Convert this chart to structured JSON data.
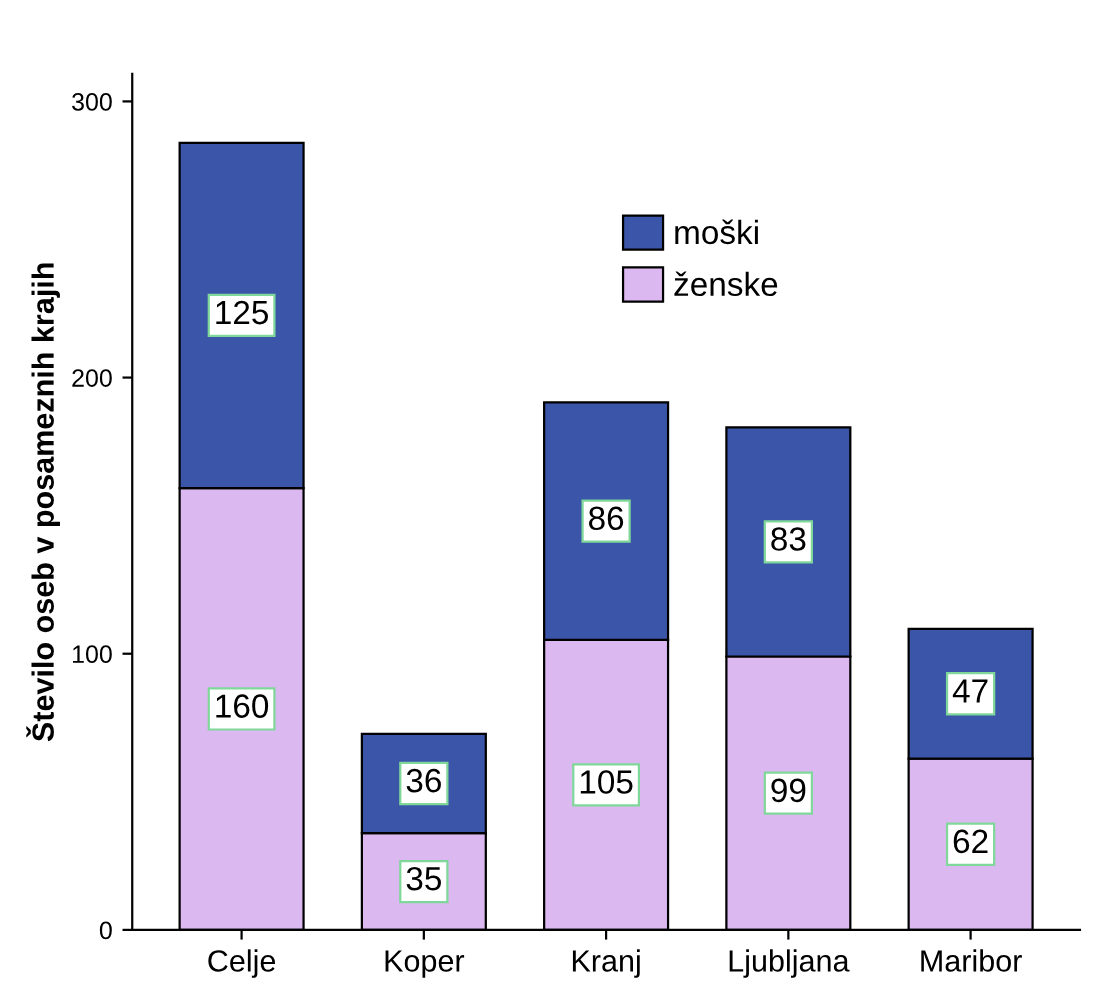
{
  "chart_data": {
    "type": "bar",
    "stacked": true,
    "ylabel": "Število oseb v posameznih krajih",
    "categories": [
      "Celje",
      "Koper",
      "Kranj",
      "Ljubljana",
      "Maribor"
    ],
    "series": [
      {
        "name": "ženske",
        "color": "#dcb8f0",
        "values": [
          160,
          35,
          105,
          99,
          62
        ]
      },
      {
        "name": "moški",
        "color": "#3b56a8",
        "values": [
          125,
          36,
          86,
          83,
          47
        ]
      }
    ],
    "ylim": [
      0,
      310
    ],
    "yticks": [
      0,
      100,
      200,
      300
    ],
    "grid": false,
    "legend": "top",
    "data_labels": true
  }
}
